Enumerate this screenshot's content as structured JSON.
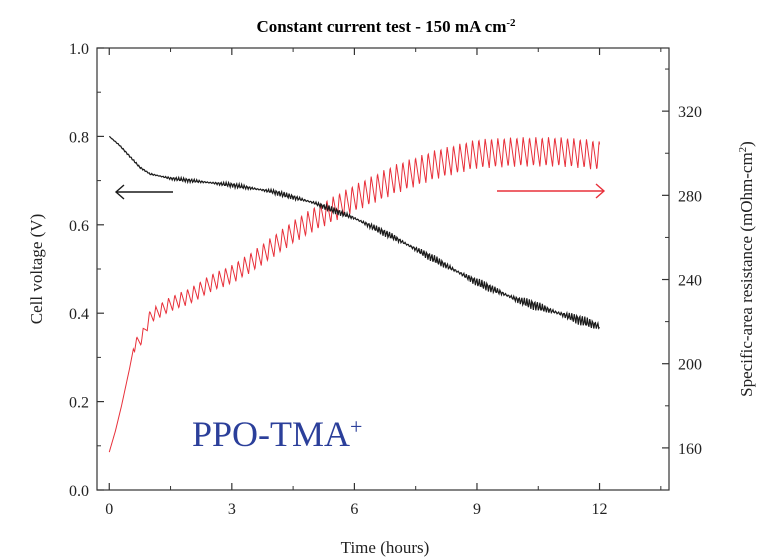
{
  "chart_data": {
    "type": "line",
    "title": "Constant current test - 150 mA cm",
    "title_superscript": "-2",
    "xlabel": "Time (hours)",
    "ylabel_left": "Cell voltage (V)",
    "ylabel_right": "Specific-area resistance (mOhm-cm",
    "ylabel_right_superscript": "2",
    "ylabel_right_suffix": ")",
    "annotation": "PPO-TMA",
    "annotation_superscript": "+",
    "xlim": [
      -0.3,
      13.7
    ],
    "ylim_left": [
      0.0,
      1.0
    ],
    "ylim_right": [
      140,
      350
    ],
    "x_ticks": [
      0,
      3,
      6,
      9,
      12
    ],
    "y_left_ticks": [
      0.0,
      0.2,
      0.4,
      0.6,
      0.8,
      1.0
    ],
    "y_left_tick_labels": [
      "0.0",
      "0.2",
      "0.4",
      "0.6",
      "0.8",
      "1.0"
    ],
    "y_right_ticks": [
      160,
      200,
      240,
      280,
      320
    ],
    "grid": false,
    "colors": {
      "voltage": "#1a1a1a",
      "resistance": "#e8303a",
      "annotation": "#2b3f9a"
    },
    "series": [
      {
        "axis": "left",
        "x": [
          0.0,
          0.25,
          0.5,
          0.75,
          1.0,
          1.5,
          2.0,
          3.0,
          4.0,
          5.0,
          6.0,
          7.0,
          8.0,
          9.0,
          10.0,
          11.0,
          12.0
        ],
        "y": [
          0.8,
          0.78,
          0.755,
          0.73,
          0.715,
          0.705,
          0.7,
          0.69,
          0.675,
          0.65,
          0.615,
          0.57,
          0.52,
          0.47,
          0.43,
          0.4,
          0.37
        ]
      },
      {
        "axis": "right",
        "x": [
          0.0,
          0.15,
          0.3,
          0.5,
          0.6,
          0.8,
          1.0,
          1.5,
          2.0,
          2.5,
          3.0,
          3.5,
          4.0,
          4.5,
          5.0,
          6.0,
          7.0,
          8.0,
          9.0,
          10.0,
          11.0,
          11.7,
          12.0
        ],
        "y": [
          158,
          168,
          180,
          198,
          208,
          212,
          222,
          228,
          232,
          238,
          242,
          248,
          255,
          262,
          268,
          278,
          287,
          294,
          299,
          300,
          300,
          299,
          298
        ]
      }
    ]
  }
}
